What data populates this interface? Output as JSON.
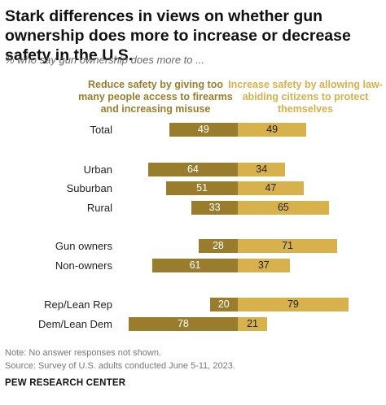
{
  "title": "Stark differences in views on whether gun ownership does more to increase or decrease safety in the U.S.",
  "subtitle": "% who say gun ownership does more to ...",
  "legend": {
    "left": "Reduce safety by giving too many people access to firearms and increasing misuse",
    "right": "Increase safety by allowing law-abiding citizens to protect themselves"
  },
  "notes": {
    "note": "Note: No answer responses not shown.",
    "source": "Source: Survey of U.S. adults conducted June 5-11, 2023.",
    "org": "PEW RESEARCH CENTER"
  },
  "colors": {
    "reduce": "#9a7d2c",
    "increase": "#d7b24c"
  },
  "chart_data": {
    "type": "bar",
    "orientation": "horizontal-diverging",
    "categories": [
      "Total",
      "Urban",
      "Suburban",
      "Rural",
      "Gun owners",
      "Non-owners",
      "Rep/Lean Rep",
      "Dem/Lean Dem"
    ],
    "series": [
      {
        "name": "Reduce safety by giving too many people access to firearms and increasing misuse",
        "values": [
          49,
          64,
          51,
          33,
          28,
          61,
          20,
          78
        ]
      },
      {
        "name": "Increase safety by allowing law-abiding citizens to protect themselves",
        "values": [
          49,
          34,
          47,
          65,
          71,
          37,
          79,
          21
        ]
      }
    ],
    "groups": [
      [
        0
      ],
      [
        1,
        2,
        3
      ],
      [
        4,
        5
      ],
      [
        6,
        7
      ]
    ],
    "title": "Stark differences in views on whether gun ownership does more to increase or decrease safety in the U.S.",
    "subtitle": "% who say gun ownership does more to ...",
    "legend": "top"
  }
}
